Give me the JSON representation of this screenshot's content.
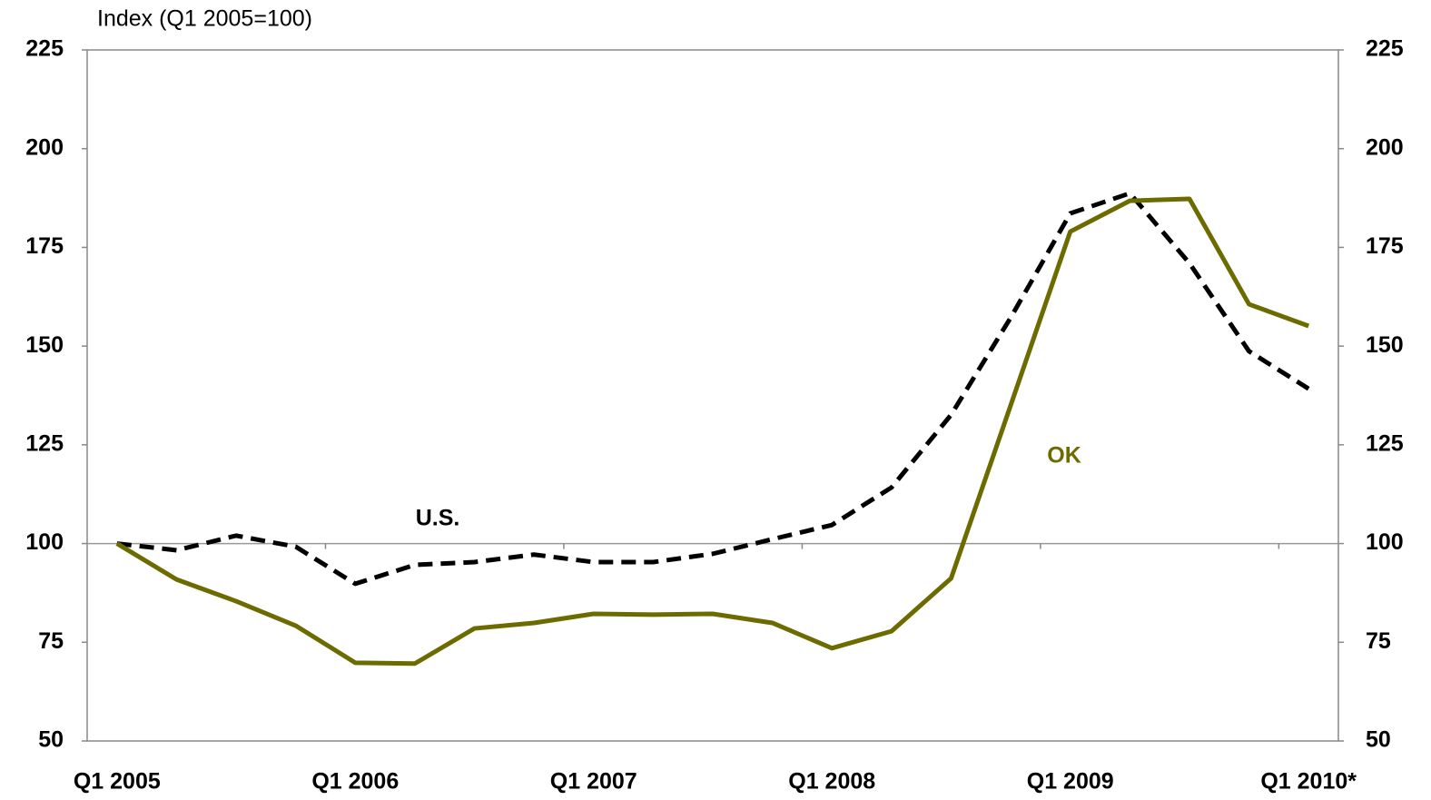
{
  "chart_data": {
    "type": "line",
    "title": "Index (Q1 2005=100)",
    "categories": [
      "Q1 2005",
      null,
      null,
      null,
      "Q1 2006",
      null,
      null,
      null,
      "Q1 2007",
      null,
      null,
      null,
      "Q1 2008",
      null,
      null,
      null,
      "Q1 2009",
      null,
      null,
      null,
      "Q1 2010*"
    ],
    "series": [
      {
        "name": "U.S.",
        "color": "#000000",
        "style": "dashed",
        "values": [
          100,
          98.3,
          102,
          99.2,
          89.8,
          94.6,
          95.3,
          97.2,
          95.3,
          95.3,
          97.4,
          101.1,
          104.7,
          114.2,
          132.6,
          157.2,
          183.6,
          188.7,
          171,
          148.7,
          139.2
        ]
      },
      {
        "name": "OK",
        "color": "#6b6b00",
        "style": "solid",
        "values": [
          100,
          90.9,
          85.4,
          79.2,
          69.8,
          69.6,
          78.5,
          79.9,
          82.2,
          82.0,
          82.2,
          79.9,
          73.5,
          77.8,
          91.2,
          135,
          179,
          186.8,
          187.3,
          160.6,
          155.1
        ]
      }
    ],
    "ylim": [
      50,
      225
    ],
    "yticks": [
      50,
      75,
      100,
      125,
      150,
      175,
      200,
      225
    ],
    "y2lim": [
      50,
      225
    ],
    "y2ticks": [
      50,
      75,
      100,
      125,
      150,
      175,
      200,
      225
    ],
    "reference_line": 100,
    "grid": false
  }
}
